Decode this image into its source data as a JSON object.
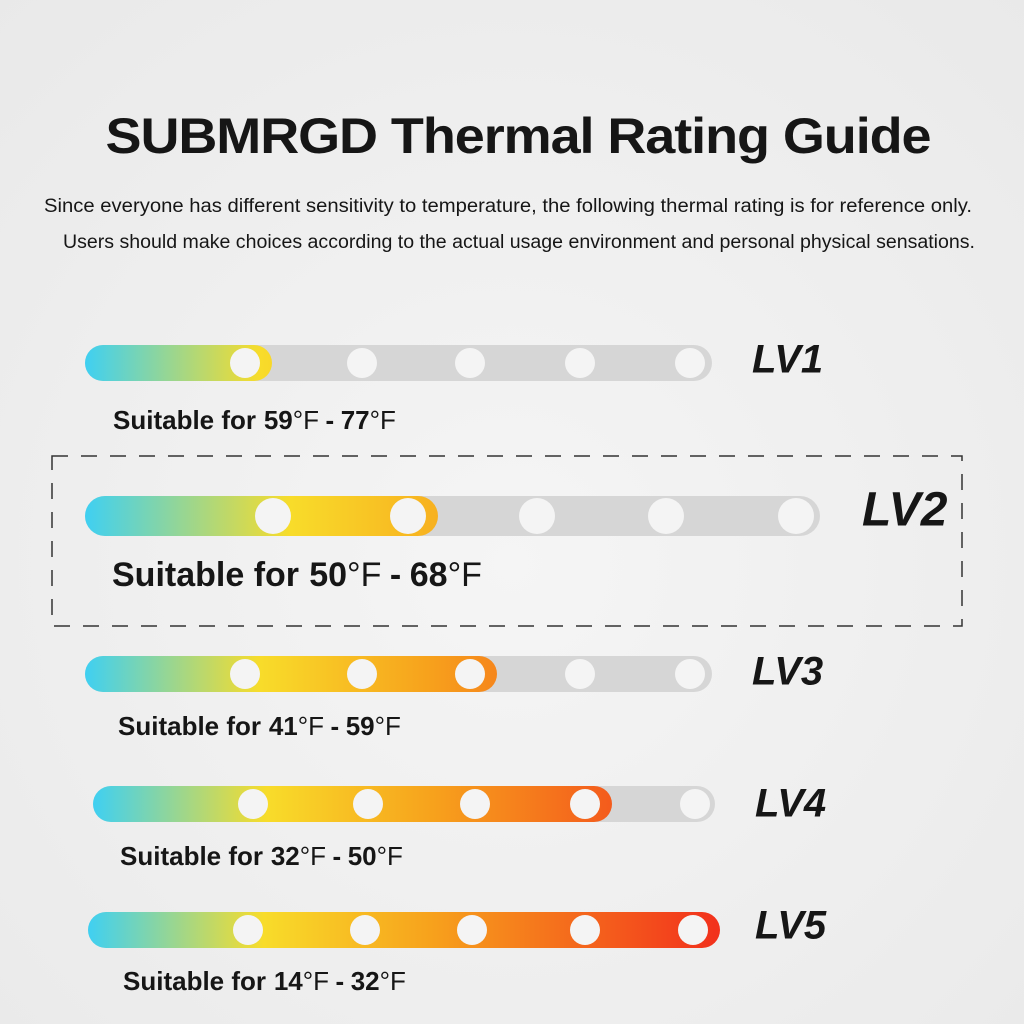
{
  "header": {
    "title": "SUBMRGD Thermal Rating Guide",
    "description": [
      "Since everyone has different sensitivity to temperature, the following thermal rating is for reference only.",
      "Users should make choices according to the actual usage environment and personal physical sensations."
    ]
  },
  "levels": [
    {
      "label": "LV1",
      "prefix": "Suitable for",
      "low": 59,
      "high": 77,
      "unit": "°F",
      "separator": "-"
    },
    {
      "label": "LV2",
      "prefix": "Suitable for",
      "low": 50,
      "high": 68,
      "unit": "°F",
      "separator": "-"
    },
    {
      "label": "LV3",
      "prefix": "Suitable for",
      "low": 41,
      "high": 59,
      "unit": "°F",
      "separator": "-"
    },
    {
      "label": "LV4",
      "prefix": "Suitable for",
      "low": 32,
      "high": 50,
      "unit": "°F",
      "separator": "-"
    },
    {
      "label": "LV5",
      "prefix": "Suitable for",
      "low": 14,
      "high": 32,
      "unit": "°F",
      "separator": "-"
    }
  ]
}
